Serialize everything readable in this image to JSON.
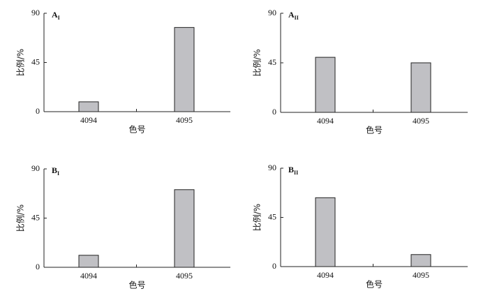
{
  "chart_data": [
    {
      "type": "bar",
      "title": "A",
      "title_sub": "I",
      "ylabel": "比例/%",
      "xlabel": "色号",
      "categories": [
        "4094",
        "4095"
      ],
      "values": [
        9,
        77
      ],
      "color": "#c0c0c4",
      "ylim": [
        0,
        90
      ],
      "yticks": [
        0,
        45,
        90
      ]
    },
    {
      "type": "bar",
      "title": "A",
      "title_sub": "II",
      "ylabel": "比例/%",
      "xlabel": "色号",
      "categories": [
        "4094",
        "4095"
      ],
      "values": [
        50,
        45
      ],
      "color": "#c0c0c4",
      "ylim": [
        0,
        90
      ],
      "yticks": [
        0,
        45,
        90
      ]
    },
    {
      "type": "bar",
      "title": "B",
      "title_sub": "I",
      "ylabel": "比例/%",
      "xlabel": "色号",
      "categories": [
        "4094",
        "4095"
      ],
      "values": [
        11,
        71
      ],
      "color": "#c0c0c4",
      "ylim": [
        0,
        90
      ],
      "yticks": [
        0,
        45,
        90
      ]
    },
    {
      "type": "bar",
      "title": "B",
      "title_sub": "II",
      "ylabel": "比例/%",
      "xlabel": "色号",
      "categories": [
        "4094",
        "4095"
      ],
      "values": [
        63,
        11
      ],
      "color": "#c0c0c4",
      "ylim": [
        0,
        90
      ],
      "yticks": [
        0,
        45,
        90
      ]
    }
  ]
}
